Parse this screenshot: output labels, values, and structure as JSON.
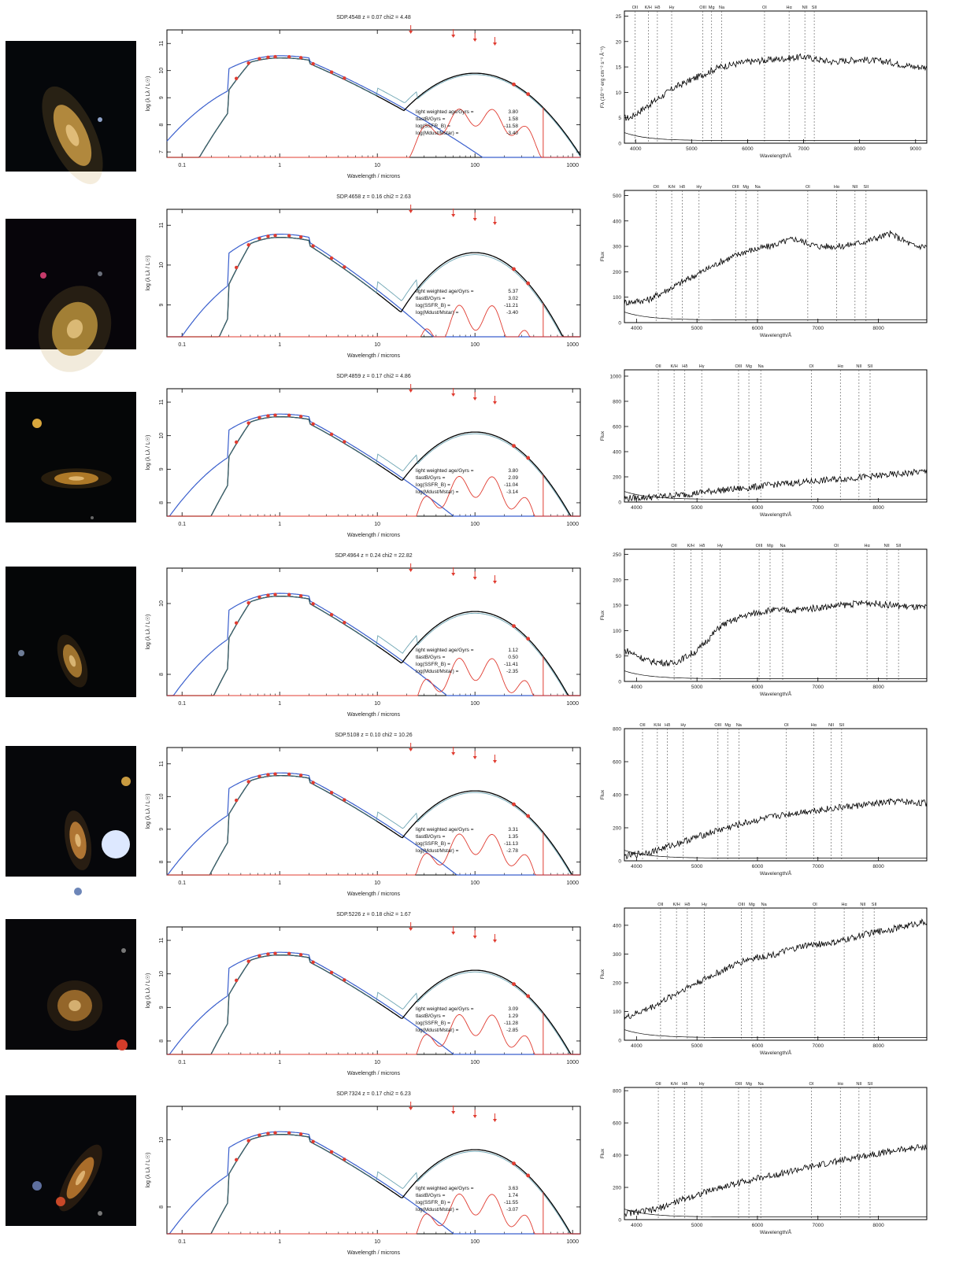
{
  "figure": {
    "sed_xlabel": "Wavelength / microns",
    "sed_ylabel": "log (λ Lλ / L☉)",
    "sed_xticks": [
      "0.1",
      "1",
      "10",
      "100",
      "1000"
    ],
    "stat_labels": [
      "light weighted age/Gyrs =",
      "tlastB/Gyrs =",
      "log(SSFR_B) =",
      "log(Mdust/Mstar) ="
    ],
    "spec_xlabel": "Wavelength/Å",
    "spec_ylabel": "Flux",
    "spec_ylabel_first": "Fλ (10⁻¹⁷ erg cm⁻² s⁻¹ Å⁻¹)",
    "spec_xticks": [
      "4000",
      "5000",
      "6000",
      "7000",
      "8000"
    ],
    "spec_xticks_first": [
      "4000",
      "5000",
      "6000",
      "7000",
      "8000",
      "9000"
    ],
    "line_labels": [
      "OII",
      "K/H",
      "Hδ",
      "Hγ",
      "OIII",
      "Mg",
      "Na",
      "OI",
      "Hα",
      "NII",
      "SII"
    ],
    "colors": {
      "sed_blue": "#3a5fcd",
      "sed_red": "#e03c31",
      "sed_black": "#000000",
      "sed_teal": "#4a8fa0"
    }
  },
  "chart_data": [
    {
      "type": "line",
      "panel": "sed",
      "row": 1,
      "title": "SDP.4548 z = 0.07  chi2 = 4.48",
      "stats": [
        "3.80",
        "1.58",
        "-11.58",
        "-3.40"
      ],
      "yticks": [
        "7",
        "8",
        "9",
        "10",
        "11"
      ],
      "xlim": [
        0.07,
        1200
      ],
      "ylim": [
        6.8,
        11.5
      ]
    },
    {
      "type": "line",
      "panel": "spectrum",
      "row": 1,
      "xlim": [
        3800,
        9200
      ],
      "ylim": [
        0,
        26
      ],
      "yticks": [
        "0",
        "5",
        "10",
        "15",
        "20",
        "25"
      ],
      "x": [
        3900,
        4300,
        4700,
        5100,
        5500,
        6000,
        6500,
        7000,
        7500,
        8000,
        8500,
        9000
      ],
      "y": [
        5,
        8,
        11,
        13,
        15,
        16,
        16.5,
        17,
        16,
        16.5,
        16,
        15
      ]
    },
    {
      "type": "line",
      "panel": "sed",
      "row": 2,
      "title": "SDP.4658 z = 0.16  chi2 = 2.63",
      "stats": [
        "5.37",
        "3.02",
        "-11.21",
        "-3.40"
      ],
      "yticks": [
        "9",
        "10",
        "11"
      ],
      "xlim": [
        0.07,
        1200
      ],
      "ylim": [
        8.2,
        11.4
      ]
    },
    {
      "type": "line",
      "panel": "spectrum",
      "row": 2,
      "xlim": [
        3800,
        8800
      ],
      "ylim": [
        0,
        520
      ],
      "yticks": [
        "0",
        "100",
        "200",
        "300",
        "400",
        "500"
      ],
      "x": [
        3850,
        4200,
        4600,
        5000,
        5400,
        5800,
        6200,
        6600,
        7000,
        7400,
        7800,
        8200,
        8600
      ],
      "y": [
        80,
        90,
        140,
        190,
        240,
        280,
        300,
        330,
        300,
        300,
        320,
        350,
        300
      ]
    },
    {
      "type": "line",
      "panel": "sed",
      "row": 3,
      "title": "SDP.4859 z = 0.17  chi2 = 4.86",
      "stats": [
        "3.80",
        "2.09",
        "-11.04",
        "-3.14"
      ],
      "yticks": [
        "8",
        "9",
        "10",
        "11"
      ],
      "xlim": [
        0.07,
        1200
      ],
      "ylim": [
        7.6,
        11.4
      ]
    },
    {
      "type": "line",
      "panel": "spectrum",
      "row": 3,
      "xlim": [
        3800,
        8800
      ],
      "ylim": [
        0,
        1050
      ],
      "yticks": [
        "0",
        "200",
        "400",
        "600",
        "800",
        "1000"
      ],
      "x": [
        3850,
        4300,
        4800,
        5300,
        5800,
        6300,
        6800,
        7300,
        7800,
        8300,
        8700
      ],
      "y": [
        30,
        40,
        60,
        90,
        110,
        140,
        160,
        180,
        200,
        220,
        240
      ]
    },
    {
      "type": "line",
      "panel": "sed",
      "row": 4,
      "title": "SDP.4964 z = 0.24  chi2 = 22.82",
      "stats": [
        "1.12",
        "0.50",
        "-11.41",
        "-2.35"
      ],
      "yticks": [
        "8",
        "10"
      ],
      "xlim": [
        0.07,
        1200
      ],
      "ylim": [
        7.4,
        11.0
      ]
    },
    {
      "type": "line",
      "panel": "spectrum",
      "row": 4,
      "xlim": [
        3800,
        8800
      ],
      "ylim": [
        0,
        260
      ],
      "yticks": [
        "0",
        "50",
        "100",
        "150",
        "200",
        "250"
      ],
      "x": [
        3850,
        4200,
        4600,
        5000,
        5400,
        5800,
        6200,
        6600,
        7000,
        7400,
        7800,
        8200,
        8700
      ],
      "y": [
        60,
        40,
        35,
        60,
        110,
        130,
        140,
        140,
        145,
        150,
        155,
        150,
        145
      ]
    },
    {
      "type": "line",
      "panel": "sed",
      "row": 5,
      "title": "SDP.5108 z = 0.10  chi2 = 10.26",
      "stats": [
        "3.31",
        "1.35",
        "-11.13",
        "-2.78"
      ],
      "yticks": [
        "8",
        "9",
        "10",
        "11"
      ],
      "xlim": [
        0.07,
        1200
      ],
      "ylim": [
        7.6,
        11.5
      ]
    },
    {
      "type": "line",
      "panel": "spectrum",
      "row": 5,
      "xlim": [
        3800,
        8800
      ],
      "ylim": [
        0,
        800
      ],
      "yticks": [
        "0",
        "200",
        "400",
        "600",
        "800"
      ],
      "x": [
        3850,
        4300,
        4800,
        5300,
        5800,
        6300,
        6800,
        7300,
        7800,
        8300,
        8700
      ],
      "y": [
        30,
        60,
        120,
        180,
        230,
        270,
        300,
        320,
        340,
        360,
        350
      ]
    },
    {
      "type": "line",
      "panel": "sed",
      "row": 6,
      "title": "SDP.5226 z = 0.18  chi2 = 1.67",
      "stats": [
        "3.09",
        "1.29",
        "-11.28",
        "-2.85"
      ],
      "yticks": [
        "8",
        "9",
        "10",
        "11"
      ],
      "xlim": [
        0.07,
        1200
      ],
      "ylim": [
        7.6,
        11.4
      ]
    },
    {
      "type": "line",
      "panel": "spectrum",
      "row": 6,
      "xlim": [
        3800,
        8800
      ],
      "ylim": [
        0,
        460
      ],
      "yticks": [
        "0",
        "100",
        "200",
        "300",
        "400"
      ],
      "x": [
        3850,
        4300,
        4800,
        5300,
        5800,
        6300,
        6800,
        7300,
        7800,
        8300,
        8700
      ],
      "y": [
        80,
        120,
        180,
        230,
        280,
        300,
        330,
        340,
        370,
        390,
        410
      ]
    },
    {
      "type": "line",
      "panel": "sed",
      "row": 7,
      "title": "SDP.7324 z = 0.17  chi2 = 6.23",
      "stats": [
        "3.63",
        "1.74",
        "-11.55",
        "-3.07"
      ],
      "yticks": [
        "8",
        "10"
      ],
      "xlim": [
        0.07,
        1200
      ],
      "ylim": [
        7.2,
        11.0
      ]
    },
    {
      "type": "line",
      "panel": "spectrum",
      "row": 7,
      "xlim": [
        3800,
        8800
      ],
      "ylim": [
        0,
        820
      ],
      "yticks": [
        "0",
        "200",
        "400",
        "600",
        "800"
      ],
      "x": [
        3850,
        4300,
        4800,
        5300,
        5800,
        6300,
        6800,
        7300,
        7800,
        8300,
        8700
      ],
      "y": [
        40,
        60,
        130,
        190,
        240,
        280,
        320,
        360,
        400,
        430,
        450
      ]
    }
  ]
}
